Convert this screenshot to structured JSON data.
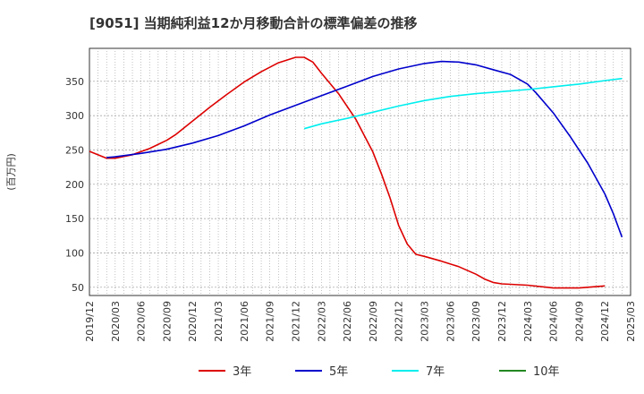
{
  "chart_data": {
    "type": "line",
    "title": "[9051]  当期純利益12か月移動合計の標準偏差の推移",
    "ylabel": "(百万円)",
    "xlabel": "",
    "ylim": [
      38,
      398
    ],
    "yticks": [
      50,
      100,
      150,
      200,
      250,
      300,
      350
    ],
    "x_ticks": [
      "2019/12",
      "2020/03",
      "2020/06",
      "2020/09",
      "2020/12",
      "2021/03",
      "2021/06",
      "2021/09",
      "2021/12",
      "2022/03",
      "2022/06",
      "2022/09",
      "2022/12",
      "2023/03",
      "2023/06",
      "2023/09",
      "2023/12",
      "2024/03",
      "2024/06",
      "2024/09",
      "2024/12",
      "2025/03"
    ],
    "grid": true,
    "legend_position": "bottom",
    "series": [
      {
        "name": "3年",
        "color": "#dd0000",
        "points": [
          [
            "2019/12",
            248
          ],
          [
            "2020/02",
            238
          ],
          [
            "2020/03",
            238
          ],
          [
            "2020/05",
            243
          ],
          [
            "2020/07",
            252
          ],
          [
            "2020/09",
            264
          ],
          [
            "2020/10",
            272
          ],
          [
            "2020/12",
            292
          ],
          [
            "2021/02",
            312
          ],
          [
            "2021/04",
            331
          ],
          [
            "2021/06",
            349
          ],
          [
            "2021/08",
            364
          ],
          [
            "2021/10",
            377
          ],
          [
            "2021/12",
            385
          ],
          [
            "2022/01",
            385
          ],
          [
            "2022/02",
            378
          ],
          [
            "2022/03",
            362
          ],
          [
            "2022/05",
            332
          ],
          [
            "2022/07",
            295
          ],
          [
            "2022/09",
            247
          ],
          [
            "2022/10",
            215
          ],
          [
            "2022/11",
            180
          ],
          [
            "2022/12",
            140
          ],
          [
            "2023/01",
            113
          ],
          [
            "2023/02",
            98
          ],
          [
            "2023/03",
            95
          ],
          [
            "2023/05",
            88
          ],
          [
            "2023/07",
            80
          ],
          [
            "2023/09",
            69
          ],
          [
            "2023/10",
            62
          ],
          [
            "2023/11",
            57
          ],
          [
            "2023/12",
            55
          ],
          [
            "2024/03",
            53
          ],
          [
            "2024/06",
            49
          ],
          [
            "2024/09",
            49
          ],
          [
            "2024/12",
            52
          ]
        ]
      },
      {
        "name": "5年",
        "color": "#0000cc",
        "points": [
          [
            "2020/02",
            239
          ],
          [
            "2020/03",
            240
          ],
          [
            "2020/06",
            245
          ],
          [
            "2020/09",
            251
          ],
          [
            "2020/12",
            260
          ],
          [
            "2021/03",
            271
          ],
          [
            "2021/06",
            285
          ],
          [
            "2021/09",
            301
          ],
          [
            "2021/12",
            315
          ],
          [
            "2022/03",
            329
          ],
          [
            "2022/06",
            343
          ],
          [
            "2022/09",
            357
          ],
          [
            "2022/12",
            368
          ],
          [
            "2023/03",
            376
          ],
          [
            "2023/05",
            379
          ],
          [
            "2023/07",
            378
          ],
          [
            "2023/09",
            374
          ],
          [
            "2023/11",
            367
          ],
          [
            "2024/01",
            360
          ],
          [
            "2024/03",
            346
          ],
          [
            "2024/04",
            333
          ],
          [
            "2024/06",
            304
          ],
          [
            "2024/08",
            269
          ],
          [
            "2024/10",
            231
          ],
          [
            "2024/12",
            186
          ],
          [
            "2025/01",
            157
          ],
          [
            "2025/02",
            123
          ]
        ]
      },
      {
        "name": "7年",
        "color": "#00eeee",
        "points": [
          [
            "2022/01",
            281
          ],
          [
            "2022/03",
            288
          ],
          [
            "2022/06",
            296
          ],
          [
            "2022/09",
            305
          ],
          [
            "2022/12",
            314
          ],
          [
            "2023/03",
            322
          ],
          [
            "2023/06",
            328
          ],
          [
            "2023/09",
            332
          ],
          [
            "2023/12",
            335
          ],
          [
            "2024/03",
            338
          ],
          [
            "2024/06",
            342
          ],
          [
            "2024/09",
            346
          ],
          [
            "2024/12",
            351
          ],
          [
            "2025/02",
            354
          ]
        ]
      },
      {
        "name": "10年",
        "color": "#228822",
        "points": []
      }
    ]
  }
}
